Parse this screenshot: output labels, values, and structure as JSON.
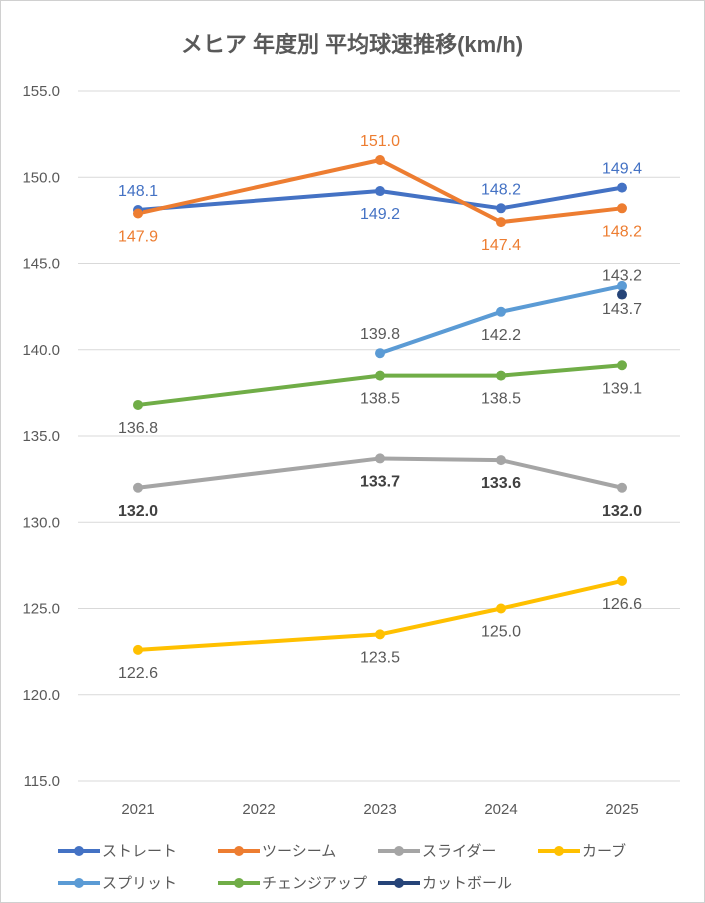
{
  "chart_data": {
    "type": "line",
    "title": "メヒア 年度別 平均球速推移(km/h)",
    "xlabel": "",
    "ylabel": "",
    "categories": [
      "2021",
      "2022",
      "2023",
      "2024",
      "2025"
    ],
    "ylim": [
      115,
      155
    ],
    "yticks": [
      "115.0",
      "120.0",
      "125.0",
      "130.0",
      "135.0",
      "140.0",
      "145.0",
      "150.0",
      "155.0"
    ],
    "grid": true,
    "legend_position": "bottom",
    "series": [
      {
        "name": "ストレート",
        "color": "#4472C4",
        "label_color": "#4472C4",
        "label_bold": false,
        "values": [
          148.1,
          null,
          149.2,
          148.2,
          149.4
        ],
        "labels": [
          "148.1",
          null,
          "149.2",
          "148.2",
          "149.4"
        ],
        "label_position": [
          "above",
          null,
          "below",
          "above",
          "above"
        ]
      },
      {
        "name": "ツーシーム",
        "color": "#ED7D31",
        "label_color": "#ED7D31",
        "label_bold": false,
        "values": [
          147.9,
          null,
          151.0,
          147.4,
          148.2
        ],
        "labels": [
          "147.9",
          null,
          "151.0",
          "147.4",
          "148.2"
        ],
        "label_position": [
          "below",
          null,
          "above",
          "below",
          "below"
        ]
      },
      {
        "name": "スライダー",
        "color": "#A5A5A5",
        "label_color": "#404040",
        "label_bold": true,
        "values": [
          132.0,
          null,
          133.7,
          133.6,
          132.0
        ],
        "labels": [
          "132.0",
          null,
          "133.7",
          "133.6",
          "132.0"
        ],
        "label_position": [
          "below",
          null,
          "below",
          "below",
          "below"
        ]
      },
      {
        "name": "カーブ",
        "color": "#FFC000",
        "label_color": "#595959",
        "label_bold": false,
        "values": [
          122.6,
          null,
          123.5,
          125.0,
          126.6
        ],
        "labels": [
          "122.6",
          null,
          "123.5",
          "125.0",
          "126.6"
        ],
        "label_position": [
          "below",
          null,
          "below",
          "below",
          "below"
        ]
      },
      {
        "name": "スプリット",
        "color": "#5B9BD5",
        "label_color": "#595959",
        "label_bold": false,
        "values": [
          null,
          null,
          139.8,
          142.2,
          143.7
        ],
        "labels": [
          null,
          null,
          "139.8",
          "142.2",
          "143.7"
        ],
        "label_position": [
          null,
          null,
          "above",
          "below",
          "below"
        ]
      },
      {
        "name": "チェンジアップ",
        "color": "#70AD47",
        "label_color": "#595959",
        "label_bold": false,
        "values": [
          136.8,
          null,
          138.5,
          138.5,
          139.1
        ],
        "labels": [
          "136.8",
          null,
          "138.5",
          "138.5",
          "139.1"
        ],
        "label_position": [
          "below",
          null,
          "below",
          "below",
          "below"
        ]
      },
      {
        "name": "カットボール",
        "color": "#264478",
        "label_color": "#595959",
        "label_bold": false,
        "values": [
          null,
          null,
          null,
          null,
          143.2
        ],
        "labels": [
          null,
          null,
          null,
          null,
          "143.2"
        ],
        "label_position": [
          null,
          null,
          null,
          null,
          "above"
        ]
      }
    ]
  }
}
